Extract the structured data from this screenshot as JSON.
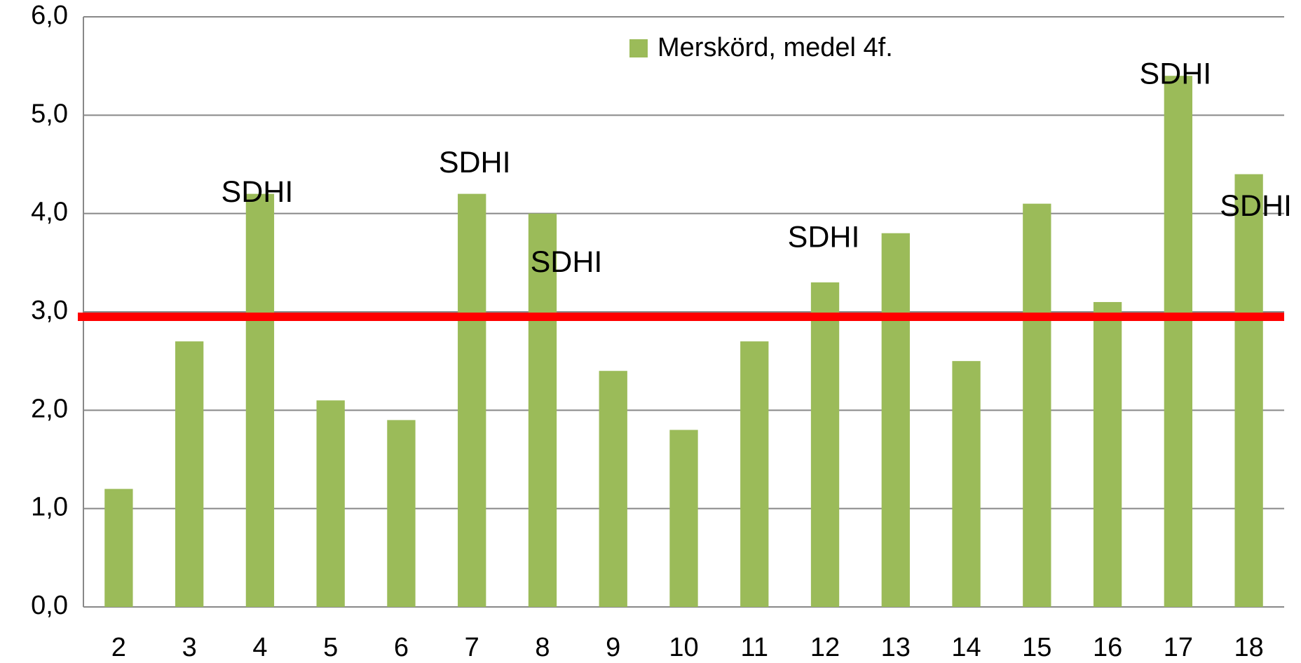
{
  "chart_data": {
    "type": "bar",
    "categories": [
      "2",
      "3",
      "4",
      "5",
      "6",
      "7",
      "8",
      "9",
      "10",
      "11",
      "12",
      "13",
      "14",
      "15",
      "16",
      "17",
      "18"
    ],
    "series": [
      {
        "name": "Merskörd, medel 4f.",
        "color": "#9bbb59",
        "values": [
          1.2,
          2.7,
          4.2,
          2.1,
          1.9,
          4.2,
          4.0,
          2.4,
          1.8,
          2.7,
          3.3,
          3.8,
          2.5,
          4.1,
          3.1,
          5.4,
          4.4
        ]
      }
    ],
    "ylim": [
      0,
      6
    ],
    "yticks": [
      {
        "value": 0,
        "label": "0,0"
      },
      {
        "value": 1,
        "label": "1,0"
      },
      {
        "value": 2,
        "label": "2,0"
      },
      {
        "value": 3,
        "label": "3,0"
      },
      {
        "value": 4,
        "label": "4,0"
      },
      {
        "value": 5,
        "label": "5,0"
      },
      {
        "value": 6,
        "label": "6,0"
      }
    ],
    "grid": true,
    "legend": "top",
    "reference_line": {
      "value": 2.95,
      "color": "#ff0000"
    },
    "annotations": [
      {
        "text": "SDHI",
        "category": "4"
      },
      {
        "text": "SDHI",
        "category": "7"
      },
      {
        "text": "SDHI",
        "category": "8"
      },
      {
        "text": "SDHI",
        "category": "12"
      },
      {
        "text": "SDHI",
        "category": "17"
      },
      {
        "text": "SDHI",
        "category": "18"
      }
    ]
  }
}
